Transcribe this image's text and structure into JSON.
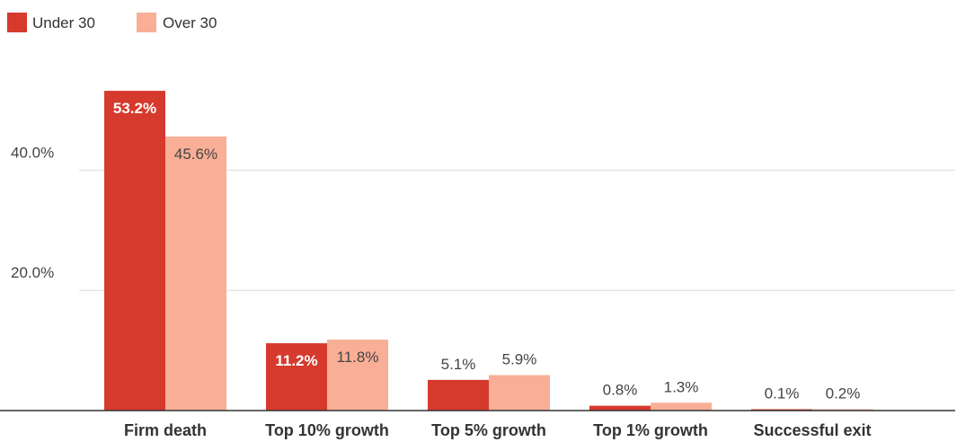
{
  "chart_data": {
    "type": "bar",
    "categories": [
      "Firm death",
      "Top 10% growth",
      "Top 5% growth",
      "Top 1% growth",
      "Successful exit"
    ],
    "series": [
      {
        "name": "Under 30",
        "color": "#d63a2d",
        "values": [
          53.2,
          11.2,
          5.1,
          0.8,
          0.1
        ],
        "labels": [
          "53.2%",
          "11.2%",
          "5.1%",
          "0.8%",
          "0.1%"
        ]
      },
      {
        "name": "Over 30",
        "color": "#f9ae96",
        "values": [
          45.6,
          11.8,
          5.9,
          1.3,
          0.2
        ],
        "labels": [
          "45.6%",
          "11.8%",
          "5.9%",
          "1.3%",
          "0.2%"
        ]
      }
    ],
    "y_ticks": [
      {
        "value": 20,
        "label": "20.0%"
      },
      {
        "value": 40,
        "label": "40.0%"
      }
    ],
    "ylim": [
      0,
      60
    ],
    "grid": true,
    "legend_position": "top-left",
    "title": "",
    "xlabel": "",
    "ylabel": ""
  }
}
